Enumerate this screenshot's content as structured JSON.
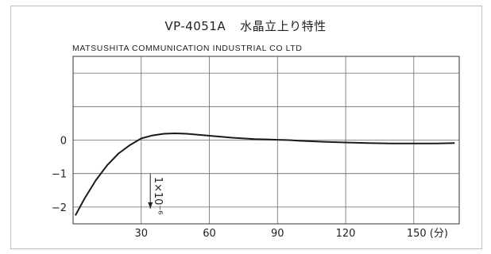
{
  "title_model": "VP-4051A",
  "title_jp": "水晶立上り特性",
  "subtitle": "MATSUSHITA COMMUNICATION INDUSTRIAL CO LTD",
  "chart_data": {
    "type": "line",
    "title": "VP-4051A 水晶立上り特性",
    "xlim": [
      0,
      170
    ],
    "ylim": [
      -2.5,
      2.5
    ],
    "x_ticks": [
      30,
      60,
      90,
      120,
      150
    ],
    "x_tick_labels": [
      "30",
      "60",
      "90",
      "120",
      "150 (分)"
    ],
    "y_ticks": [
      0,
      -1,
      -2
    ],
    "y_tick_labels": [
      "0",
      "−1",
      "−2"
    ],
    "grid": true,
    "scale_annotation": "1×10⁻⁶",
    "series": [
      {
        "color": "#1a1a1a",
        "x": [
          1,
          5,
          10,
          15,
          20,
          25,
          30,
          35,
          40,
          45,
          50,
          55,
          60,
          65,
          70,
          75,
          80,
          85,
          90,
          95,
          100,
          110,
          120,
          130,
          140,
          150,
          160,
          168
        ],
        "y": [
          -2.25,
          -1.75,
          -1.2,
          -0.75,
          -0.4,
          -0.15,
          0.05,
          0.14,
          0.19,
          0.2,
          0.19,
          0.16,
          0.13,
          0.1,
          0.07,
          0.05,
          0.03,
          0.02,
          0.01,
          0.0,
          -0.02,
          -0.05,
          -0.07,
          -0.09,
          -0.1,
          -0.1,
          -0.1,
          -0.09
        ]
      }
    ]
  }
}
